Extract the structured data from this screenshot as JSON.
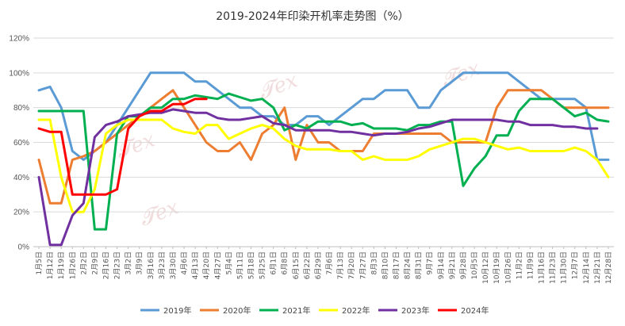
{
  "chart_data": {
    "type": "line",
    "title": "2019-2024年印染开机率走势图（%）",
    "ylim": [
      0,
      120
    ],
    "yticks": [
      "0%",
      "20%",
      "40%",
      "60%",
      "80%",
      "100%",
      "120%"
    ],
    "grid": "horizontal",
    "legend": "bottom",
    "categories": [
      "1月5日",
      "1月12日",
      "1月19日",
      "1月26日",
      "2月2日",
      "2月9日",
      "2月16日",
      "2月23日",
      "3月2日",
      "3月9日",
      "3月16日",
      "3月23日",
      "3月30日",
      "4月6日",
      "4月13日",
      "4月20日",
      "4月27日",
      "5月4日",
      "5月11日",
      "5月18日",
      "5月25日",
      "6月1日",
      "6月8日",
      "6月15日",
      "6月22日",
      "6月29日",
      "7月6日",
      "7月13日",
      "7月20日",
      "7月27日",
      "8月3日",
      "8月10日",
      "8月17日",
      "8月24日",
      "8月31日",
      "9月7日",
      "9月14日",
      "9月21日",
      "9月28日",
      "10月5日",
      "10月12日",
      "10月19日",
      "10月26日",
      "11月2日",
      "11月9日",
      "11月16日",
      "11月23日",
      "11月30日",
      "12月7日",
      "12月14日",
      "12月21日",
      "12月28日"
    ],
    "series": [
      {
        "name": "2019年",
        "color": "#5b9bd5",
        "values": [
          90,
          92,
          80,
          55,
          50,
          55,
          60,
          70,
          80,
          90,
          100,
          100,
          100,
          100,
          95,
          95,
          90,
          85,
          80,
          80,
          75,
          75,
          70,
          70,
          75,
          75,
          70,
          75,
          80,
          85,
          85,
          90,
          90,
          90,
          80,
          80,
          90,
          95,
          100,
          100,
          100,
          100,
          100,
          95,
          90,
          85,
          85,
          85,
          85,
          80,
          50,
          50
        ]
      },
      {
        "name": "2020年",
        "color": "#ed7d31",
        "values": [
          50,
          25,
          25,
          50,
          52,
          55,
          60,
          65,
          70,
          75,
          80,
          85,
          90,
          80,
          70,
          60,
          55,
          55,
          60,
          50,
          65,
          70,
          80,
          50,
          70,
          60,
          60,
          55,
          55,
          55,
          65,
          65,
          65,
          65,
          65,
          65,
          65,
          60,
          60,
          60,
          60,
          80,
          90,
          90,
          90,
          90,
          85,
          80,
          80,
          80,
          80,
          80
        ]
      },
      {
        "name": "2021年",
        "color": "#00b050",
        "values": [
          78,
          78,
          78,
          78,
          78,
          10,
          10,
          65,
          75,
          75,
          80,
          80,
          85,
          85,
          87,
          86,
          85,
          88,
          86,
          84,
          85,
          80,
          67,
          70,
          68,
          72,
          72,
          72,
          70,
          71,
          68,
          68,
          68,
          67,
          70,
          70,
          72,
          72,
          35,
          45,
          52,
          64,
          64,
          78,
          85,
          85,
          85,
          80,
          75,
          77,
          73,
          72
        ]
      },
      {
        "name": "2022年",
        "color": "#ffff00",
        "values": [
          73,
          73,
          40,
          20,
          20,
          33,
          65,
          70,
          73,
          73,
          73,
          73,
          68,
          66,
          65,
          70,
          70,
          62,
          65,
          68,
          70,
          68,
          62,
          58,
          56,
          56,
          56,
          55,
          55,
          50,
          52,
          50,
          50,
          50,
          52,
          56,
          58,
          60,
          62,
          62,
          60,
          58,
          56,
          57,
          55,
          55,
          55,
          55,
          57,
          55,
          50,
          40
        ]
      },
      {
        "name": "2023年",
        "color": "#7030a0",
        "values": [
          40,
          1,
          1,
          18,
          25,
          63,
          70,
          72,
          75,
          76,
          77,
          77,
          79,
          78,
          77,
          77,
          74,
          73,
          73,
          74,
          75,
          71,
          70,
          67,
          67,
          67,
          67,
          66,
          66,
          65,
          64,
          65,
          65,
          66,
          68,
          69,
          71,
          73,
          73,
          73,
          73,
          73,
          72,
          72,
          70,
          70,
          70,
          69,
          69,
          68,
          68,
          null
        ]
      },
      {
        "name": "2024年",
        "color": "#ff0000",
        "values": [
          68,
          66,
          66,
          30,
          30,
          30,
          30,
          33,
          68,
          75,
          78,
          78,
          82,
          82,
          85,
          85,
          null,
          null,
          null,
          null,
          null,
          null,
          null,
          null,
          null,
          null,
          null,
          null,
          null,
          null,
          null,
          null,
          null,
          null,
          null,
          null,
          null,
          null,
          null,
          null,
          null,
          null,
          null,
          null,
          null,
          null,
          null,
          null,
          null,
          null,
          null,
          null
        ]
      }
    ]
  }
}
